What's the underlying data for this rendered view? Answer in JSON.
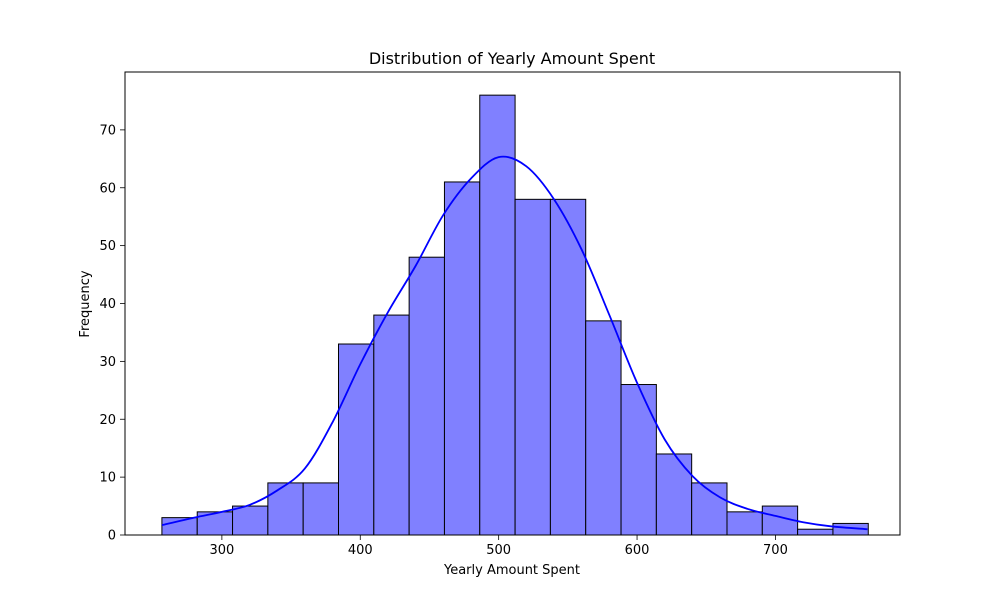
{
  "chart_data": {
    "type": "bar",
    "title": "Distribution of Yearly Amount Spent",
    "xlabel": "Yearly Amount Spent",
    "ylabel": "Frequency",
    "xlim": [
      230,
      790
    ],
    "ylim": [
      0,
      80
    ],
    "xticks": [
      300,
      400,
      500,
      600,
      700
    ],
    "yticks": [
      0,
      10,
      20,
      30,
      40,
      50,
      60,
      70
    ],
    "bins": {
      "start": 256.67,
      "width": 25.52,
      "counts": [
        3,
        4,
        5,
        9,
        9,
        33,
        38,
        48,
        61,
        76,
        58,
        58,
        37,
        26,
        14,
        9,
        4,
        5,
        1,
        2
      ]
    },
    "kde": {
      "x": [
        256.7,
        280,
        300,
        320,
        340,
        360,
        380,
        400,
        420,
        440,
        460,
        480,
        500,
        520,
        540,
        560,
        580,
        600,
        620,
        640,
        660,
        680,
        700,
        720,
        740,
        766.5
      ],
      "y": [
        1.7,
        3.0,
        4.0,
        5.2,
        7.7,
        11.5,
        19.5,
        29.5,
        38.5,
        46.5,
        55.3,
        61.6,
        65.3,
        63.7,
        58.0,
        49.3,
        38.0,
        26.3,
        16.5,
        10.2,
        6.5,
        4.5,
        3.3,
        2.2,
        1.5,
        1.0
      ]
    },
    "grid": false,
    "colors": {
      "bar_fill": "#8080ff",
      "bar_edge": "#000000",
      "kde_line": "#0000ff"
    }
  }
}
